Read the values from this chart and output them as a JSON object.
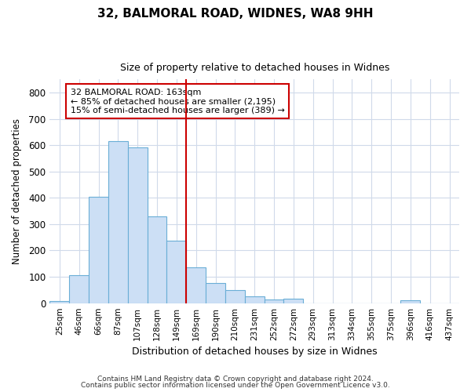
{
  "title1": "32, BALMORAL ROAD, WIDNES, WA8 9HH",
  "title2": "Size of property relative to detached houses in Widnes",
  "xlabel": "Distribution of detached houses by size in Widnes",
  "ylabel": "Number of detached properties",
  "bar_labels": [
    "25sqm",
    "46sqm",
    "66sqm",
    "87sqm",
    "107sqm",
    "128sqm",
    "149sqm",
    "169sqm",
    "190sqm",
    "210sqm",
    "231sqm",
    "252sqm",
    "272sqm",
    "293sqm",
    "313sqm",
    "334sqm",
    "355sqm",
    "375sqm",
    "396sqm",
    "416sqm",
    "437sqm"
  ],
  "bar_values": [
    8,
    106,
    403,
    615,
    590,
    329,
    236,
    135,
    77,
    50,
    25,
    15,
    16,
    0,
    0,
    0,
    0,
    0,
    10,
    0,
    0
  ],
  "bar_color": "#ccdff5",
  "bar_edge_color": "#6aaed6",
  "vline_color": "#cc0000",
  "vline_x": 7,
  "annotation_text": "32 BALMORAL ROAD: 163sqm\n← 85% of detached houses are smaller (2,195)\n15% of semi-detached houses are larger (389) →",
  "ylim": [
    0,
    850
  ],
  "yticks": [
    0,
    100,
    200,
    300,
    400,
    500,
    600,
    700,
    800
  ],
  "footer1": "Contains HM Land Registry data © Crown copyright and database right 2024.",
  "footer2": "Contains public sector information licensed under the Open Government Licence v3.0.",
  "bg_color": "#ffffff",
  "grid_color": "#d0daea"
}
